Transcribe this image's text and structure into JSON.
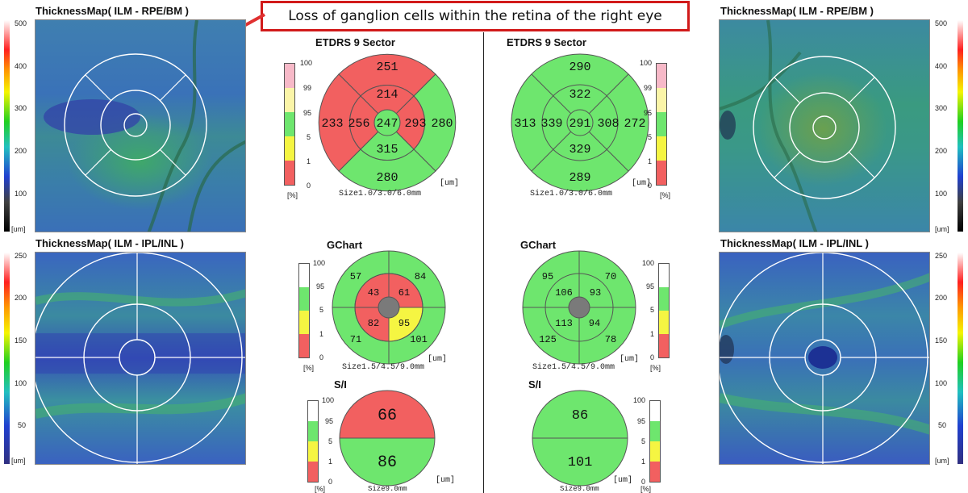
{
  "annotation": {
    "text": "Loss of ganglion cells within the retina of the right eye",
    "color": "#d11a1a"
  },
  "left": {
    "map_top_title": "ThicknessMap( ILM - RPE/BM )",
    "map_bottom_title": "ThicknessMap( ILM - IPL/INL )",
    "scale_top": [
      "500",
      "400",
      "300",
      "200",
      "100",
      "[um]"
    ],
    "scale_bottom": [
      "250",
      "200",
      "150",
      "100",
      "50",
      "[um]"
    ],
    "etdrs": {
      "title": "ETDRS 9 Sector",
      "values": {
        "center": "247",
        "inner_superior": "214",
        "inner_nasal": "256",
        "inner_inferior": "315",
        "inner_temporal": "293",
        "outer_superior": "251",
        "outer_nasal": "233",
        "outer_inferior": "280",
        "outer_temporal": "280"
      },
      "unit": "[um]",
      "size": "Size1.0/3.0/6.0mm"
    },
    "gchart": {
      "title": "GChart",
      "values": {
        "outer_sup_a": "57",
        "outer_sup_b": "84",
        "inner_sup_a": "43",
        "inner_sup_b": "61",
        "inner_inf_a": "82",
        "inner_inf_b": "95",
        "outer_inf_a": "71",
        "outer_inf_b": "101"
      },
      "unit": "[um]",
      "size": "Size1.5/4.5/9.0mm"
    },
    "si": {
      "title": "S/I",
      "superior": "66",
      "inferior": "86",
      "unit": "[um]",
      "size": "Size9.0mm"
    }
  },
  "right": {
    "map_top_title": "ThicknessMap( ILM - RPE/BM )",
    "map_bottom_title": "ThicknessMap( ILM - IPL/INL )",
    "scale_top": [
      "500",
      "400",
      "300",
      "200",
      "100",
      "[um]"
    ],
    "scale_bottom": [
      "250",
      "200",
      "150",
      "100",
      "50",
      "[um]"
    ],
    "etdrs": {
      "title": "ETDRS 9 Sector",
      "values": {
        "center": "291",
        "inner_superior": "322",
        "inner_nasal": "339",
        "inner_inferior": "329",
        "inner_temporal": "308",
        "outer_superior": "290",
        "outer_nasal": "313",
        "outer_inferior": "289",
        "outer_temporal": "272"
      },
      "unit": "[um]",
      "size": "Size1.0/3.0/6.0mm"
    },
    "gchart": {
      "title": "GChart",
      "values": {
        "outer_sup_a": "95",
        "outer_sup_b": "70",
        "inner_sup_a": "106",
        "inner_sup_b": "93",
        "inner_inf_a": "113",
        "inner_inf_b": "94",
        "outer_inf_a": "125",
        "outer_inf_b": "78"
      },
      "unit": "[um]",
      "size": "Size1.5/4.5/9.0mm"
    },
    "si": {
      "title": "S/I",
      "superior": "86",
      "inferior": "101",
      "unit": "[um]",
      "size": "Size9.0mm"
    }
  },
  "norm_scale_etdrs": [
    "100",
    "99",
    "95",
    "5",
    "1",
    "0",
    "[%]"
  ],
  "norm_scale_gchart": [
    "100",
    "95",
    "5",
    "1",
    "0",
    "[%]"
  ],
  "colors": {
    "abnormal": "#f26060",
    "normal": "#6ee66e",
    "borderline": "#f5f542",
    "pink": "#f7b9c8",
    "lightyellow": "#fbf5a8",
    "white": "#ffffff"
  }
}
